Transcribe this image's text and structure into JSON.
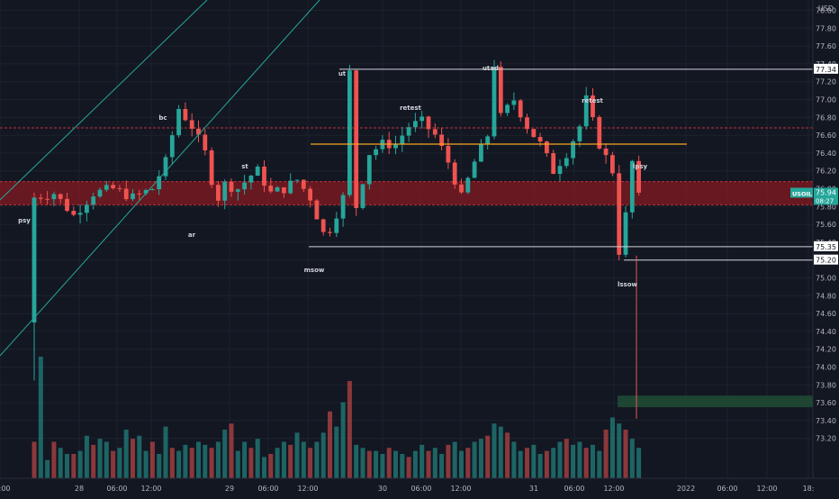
{
  "header": {
    "currency": "USD"
  },
  "symbol": {
    "name": "USOIL",
    "last_price": "75.94",
    "countdown": "08:27"
  },
  "levels": [
    {
      "price": "77.34"
    },
    {
      "price": "75.35"
    },
    {
      "price": "75.20"
    }
  ],
  "annotations": [
    {
      "label": "psy"
    },
    {
      "label": "bc"
    },
    {
      "label": "ar"
    },
    {
      "label": "st"
    },
    {
      "label": "msow"
    },
    {
      "label": "ut"
    },
    {
      "label": "retest"
    },
    {
      "label": "utad"
    },
    {
      "label": "retest"
    },
    {
      "label": "lpsy"
    },
    {
      "label": "lssow"
    }
  ],
  "colors": {
    "background": "#131722",
    "up": "#26a69a",
    "down": "#ef5350",
    "resistance_zone": "#8b1a1f",
    "orange_line": "#f5a623",
    "demand_zone": "#1f4a33",
    "channel": "#26a69a"
  },
  "chart_data": {
    "type": "candlestick",
    "y_axis": {
      "min": 73.0,
      "max": 78.0,
      "ticks": [
        "78.00",
        "77.80",
        "77.60",
        "77.40",
        "77.20",
        "77.00",
        "76.80",
        "76.60",
        "76.40",
        "76.20",
        "76.00",
        "75.80",
        "75.60",
        "75.40",
        "75.20",
        "75.00",
        "74.80",
        "74.60",
        "74.40",
        "74.20",
        "74.00",
        "73.80",
        "73.60",
        "73.40",
        "73.20"
      ]
    },
    "x_axis": {
      "ticks": [
        "12:00",
        "28",
        "06:00",
        "12:00",
        "29",
        "06:00",
        "12:00",
        "30",
        "06:00",
        "12:00",
        "31",
        "06:00",
        "12:00",
        "2022",
        "06:00",
        "12:00",
        "18:"
      ]
    },
    "resistance_zone": {
      "low": 75.82,
      "high": 76.08
    },
    "orange_level": 76.5,
    "demand_zone": {
      "low": 73.55,
      "high": 73.68
    },
    "series": [
      {
        "name": "price",
        "points": [
          [
            0,
            75.9
          ],
          [
            3,
            75.95
          ],
          [
            6,
            75.7
          ],
          [
            9,
            75.95
          ],
          [
            12,
            76.0
          ],
          [
            15,
            75.9
          ],
          [
            18,
            76.0
          ],
          [
            20,
            76.3
          ],
          [
            22,
            76.9
          ],
          [
            24,
            76.7
          ],
          [
            26,
            76.4
          ],
          [
            27,
            76.1
          ],
          [
            28,
            75.9
          ],
          [
            29,
            76.05
          ],
          [
            31,
            76.0
          ],
          [
            33,
            76.15
          ],
          [
            34,
            76.2
          ],
          [
            36,
            75.95
          ],
          [
            38,
            76.0
          ],
          [
            40,
            76.1
          ],
          [
            42,
            75.9
          ],
          [
            44,
            75.5
          ],
          [
            45,
            75.55
          ],
          [
            47,
            75.9
          ],
          [
            48,
            77.3
          ],
          [
            49,
            75.8
          ],
          [
            51,
            76.4
          ],
          [
            53,
            76.5
          ],
          [
            55,
            76.5
          ],
          [
            57,
            76.7
          ],
          [
            59,
            76.75
          ],
          [
            61,
            76.6
          ],
          [
            63,
            76.3
          ],
          [
            65,
            75.9
          ],
          [
            67,
            76.3
          ],
          [
            69,
            76.6
          ],
          [
            70,
            77.4
          ],
          [
            71,
            76.8
          ],
          [
            73,
            77.0
          ],
          [
            75,
            76.7
          ],
          [
            77,
            76.5
          ],
          [
            79,
            76.2
          ],
          [
            81,
            76.4
          ],
          [
            83,
            76.7
          ],
          [
            84,
            77.0
          ],
          [
            86,
            76.5
          ],
          [
            88,
            76.2
          ],
          [
            89,
            75.3
          ],
          [
            90,
            75.7
          ],
          [
            91,
            76.3
          ],
          [
            92,
            75.9
          ]
        ]
      },
      {
        "name": "volume",
        "values": [
          12,
          40,
          6,
          12,
          10,
          8,
          8,
          9,
          14,
          11,
          13,
          12,
          9,
          10,
          16,
          13,
          14,
          9,
          12,
          8,
          17,
          10,
          9,
          11,
          10,
          12,
          11,
          10,
          12,
          16,
          18,
          9,
          12,
          10,
          13,
          7,
          8,
          10,
          12,
          11,
          15,
          12,
          10,
          12,
          15,
          22,
          17,
          25,
          32,
          11,
          10,
          9,
          9,
          8,
          10,
          9,
          8,
          7,
          9,
          11,
          9,
          10,
          8,
          11,
          12,
          9,
          10,
          12,
          13,
          14,
          18,
          17,
          15,
          12,
          9,
          10,
          11,
          8,
          9,
          10,
          12,
          13,
          11,
          12,
          10,
          11,
          9,
          16,
          20,
          18,
          16,
          13,
          10
        ]
      }
    ]
  }
}
